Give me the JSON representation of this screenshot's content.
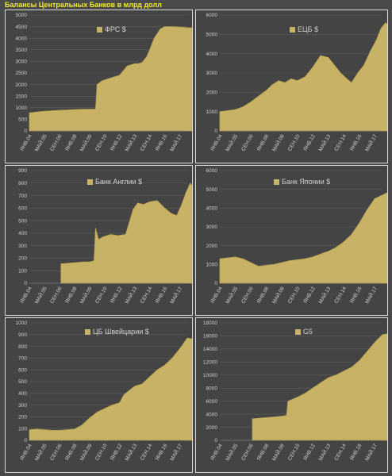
{
  "title": "Балансы Центральных Банков в млрд долл",
  "colors": {
    "area": "#c8b266",
    "line": "#b9a24c",
    "grid": "#5c5c5c",
    "text": "#cfcfcf"
  },
  "chart_data": [
    {
      "type": "area",
      "legend": "ФРС  $",
      "ylim": [
        0,
        5000
      ],
      "ystep": 500,
      "xticks": [
        "ЯНВ.04",
        "МАЙ.05",
        "СЕН.06",
        "ЯНВ.08",
        "МАЙ.09",
        "СЕН.10",
        "ЯНВ.12",
        "МАЙ.13",
        "СЕН.14",
        "ЯНВ.16",
        "МАЙ.17"
      ],
      "x": [
        0,
        0.5,
        1,
        1.5,
        2,
        2.5,
        3,
        3.5,
        4,
        4.4,
        4.5,
        4.8,
        5,
        5.5,
        6,
        6.5,
        7,
        7.2,
        7.5,
        7.8,
        8,
        8.3,
        8.7,
        9,
        9.5,
        10,
        10.4,
        10.8,
        11
      ],
      "y": [
        780,
        820,
        850,
        870,
        890,
        900,
        920,
        930,
        940,
        940,
        2000,
        2150,
        2200,
        2300,
        2400,
        2800,
        2900,
        2900,
        2950,
        3200,
        3500,
        4000,
        4400,
        4500,
        4500,
        4480,
        4460,
        4450,
        4300
      ]
    },
    {
      "type": "area",
      "legend": "ЕЦБ $",
      "ylim": [
        0,
        6000
      ],
      "ystep": 1000,
      "xticks": [
        "ЯНВ.04",
        "МАЙ.05",
        "СЕН.06",
        "ЯНВ.08",
        "МАЙ.09",
        "СЕН.10",
        "ЯНВ.12",
        "МАЙ.13",
        "СЕН.14",
        "ЯНВ.16",
        "МАЙ.17"
      ],
      "x": [
        0,
        0.5,
        1,
        1.5,
        2,
        2.5,
        3,
        3.4,
        3.8,
        4.2,
        4.6,
        5,
        5.5,
        6,
        6.5,
        7,
        7.4,
        7.8,
        8.2,
        8.5,
        8.9,
        9.3,
        9.7,
        10.1,
        10.4,
        10.7,
        11
      ],
      "y": [
        1000,
        1050,
        1100,
        1250,
        1500,
        1800,
        2100,
        2400,
        2600,
        2500,
        2700,
        2600,
        2800,
        3300,
        3900,
        3800,
        3400,
        3000,
        2700,
        2500,
        3000,
        3400,
        4100,
        4700,
        5300,
        5600,
        5400
      ]
    },
    {
      "type": "area",
      "legend": "Банк Англии $",
      "ylim": [
        0,
        900
      ],
      "ystep": 100,
      "xticks": [
        "ЯНВ.04",
        "МАЙ.05",
        "СЕН.06",
        "ЯНВ.08",
        "МАЙ.09",
        "СЕН.10",
        "ЯНВ.12",
        "МАЙ.13",
        "СЕН.14",
        "ЯНВ.16",
        "МАЙ.17"
      ],
      "x": [
        2.1,
        2.6,
        3.1,
        3.6,
        4,
        4.3,
        4.4,
        4.6,
        4.9,
        5.4,
        5.9,
        6.4,
        6.9,
        7.2,
        7.6,
        8,
        8.5,
        9,
        9.4,
        9.8,
        10.1,
        10.4,
        10.7,
        11
      ],
      "y": [
        155,
        160,
        165,
        170,
        170,
        180,
        440,
        350,
        370,
        390,
        380,
        390,
        590,
        640,
        630,
        650,
        660,
        600,
        560,
        540,
        620,
        720,
        800,
        740
      ]
    },
    {
      "type": "area",
      "legend": "Банк Японии $",
      "ylim": [
        0,
        6000
      ],
      "ystep": 1000,
      "xticks": [
        "ЯНВ.04",
        "МАЙ.05",
        "СЕН.06",
        "ЯНВ.08",
        "МАЙ.09",
        "СЕН.10",
        "ЯНВ.12",
        "МАЙ.13",
        "СЕН.14",
        "ЯНВ.16",
        "МАЙ.17"
      ],
      "x": [
        0,
        0.5,
        1,
        1.5,
        2,
        2.5,
        3,
        3.5,
        4,
        4.5,
        5,
        5.5,
        6,
        6.5,
        7,
        7.5,
        8,
        8.5,
        9,
        9.5,
        10,
        10.5,
        11
      ],
      "y": [
        1300,
        1350,
        1400,
        1300,
        1100,
        900,
        950,
        1000,
        1100,
        1200,
        1250,
        1300,
        1400,
        1550,
        1700,
        1900,
        2200,
        2600,
        3200,
        3900,
        4500,
        4700,
        4900
      ]
    },
    {
      "type": "area",
      "legend": "ЦБ Швейцарии $",
      "ylim": [
        0,
        1000
      ],
      "ystep": 100,
      "xticks": [
        "ЯНВ.04",
        "МАЙ.05",
        "СЕН.06",
        "ЯНВ.08",
        "МАЙ.09",
        "СЕН.10",
        "ЯНВ.12",
        "МАЙ.13",
        "СЕН.14",
        "ЯНВ.16",
        "МАЙ.17"
      ],
      "x": [
        0,
        0.5,
        1,
        1.5,
        2,
        2.5,
        3,
        3.5,
        4,
        4.5,
        5,
        5.5,
        6,
        6.3,
        6.6,
        7,
        7.5,
        8,
        8.5,
        9,
        9.5,
        10,
        10.5,
        11
      ],
      "y": [
        90,
        95,
        90,
        85,
        85,
        90,
        95,
        130,
        190,
        240,
        270,
        300,
        320,
        390,
        420,
        460,
        480,
        540,
        600,
        640,
        700,
        780,
        870,
        860
      ]
    },
    {
      "type": "area",
      "legend": "G5",
      "ylim": [
        0,
        18000
      ],
      "ystep": 2000,
      "xticks": [
        "ЯНВ.04",
        "МАЙ.05",
        "СЕН.06",
        "ЯНВ.08",
        "МАЙ.09",
        "СЕН.10",
        "ЯНВ.12",
        "МАЙ.13",
        "СЕН.14",
        "ЯНВ.16",
        "МАЙ.17"
      ],
      "x": [
        2.1,
        2.6,
        3.1,
        3.6,
        4,
        4.3,
        4.4,
        4.7,
        5,
        5.5,
        6,
        6.5,
        7,
        7.5,
        8,
        8.5,
        9,
        9.5,
        10,
        10.5,
        11
      ],
      "y": [
        3300,
        3400,
        3500,
        3600,
        3700,
        3800,
        6000,
        6300,
        6600,
        7200,
        8000,
        8800,
        9600,
        10000,
        10600,
        11200,
        12200,
        13600,
        15000,
        16200,
        16400
      ]
    }
  ]
}
